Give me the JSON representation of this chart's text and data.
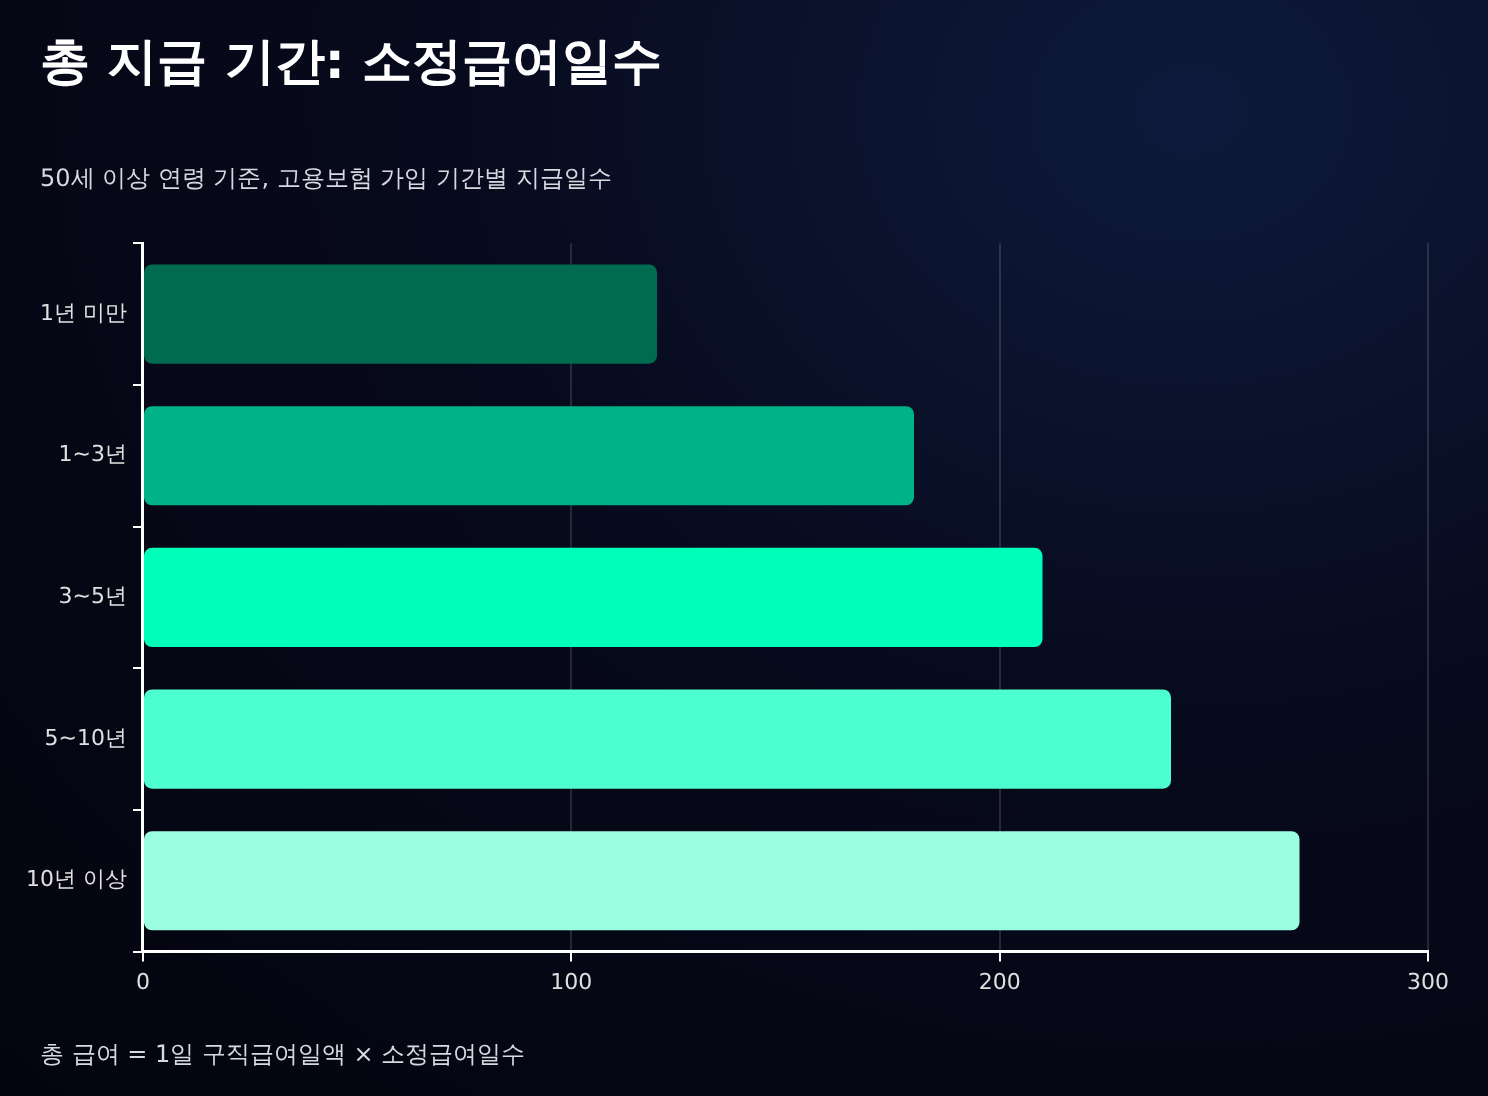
{
  "chart_data": {
    "type": "bar",
    "orientation": "horizontal",
    "title": "총 지급 기간: 소정급여일수",
    "subtitle": "50세 이상 연령 기준, 고용보험 가입 기간별 지급일수",
    "categories": [
      "1년 미만",
      "1~3년",
      "3~5년",
      "5~10년",
      "10년 이상"
    ],
    "values": [
      120,
      180,
      210,
      240,
      270
    ],
    "colors": [
      "#006b4f",
      "#00b386",
      "#00ffb8",
      "#4dffd0",
      "#99ffe0"
    ],
    "xlim": [
      0,
      300
    ],
    "xticks": [
      0,
      100,
      200,
      300
    ],
    "grid": "x",
    "annotations": [
      "총 급여 = 1일 구직급여일액 × 소정급여일수"
    ]
  }
}
